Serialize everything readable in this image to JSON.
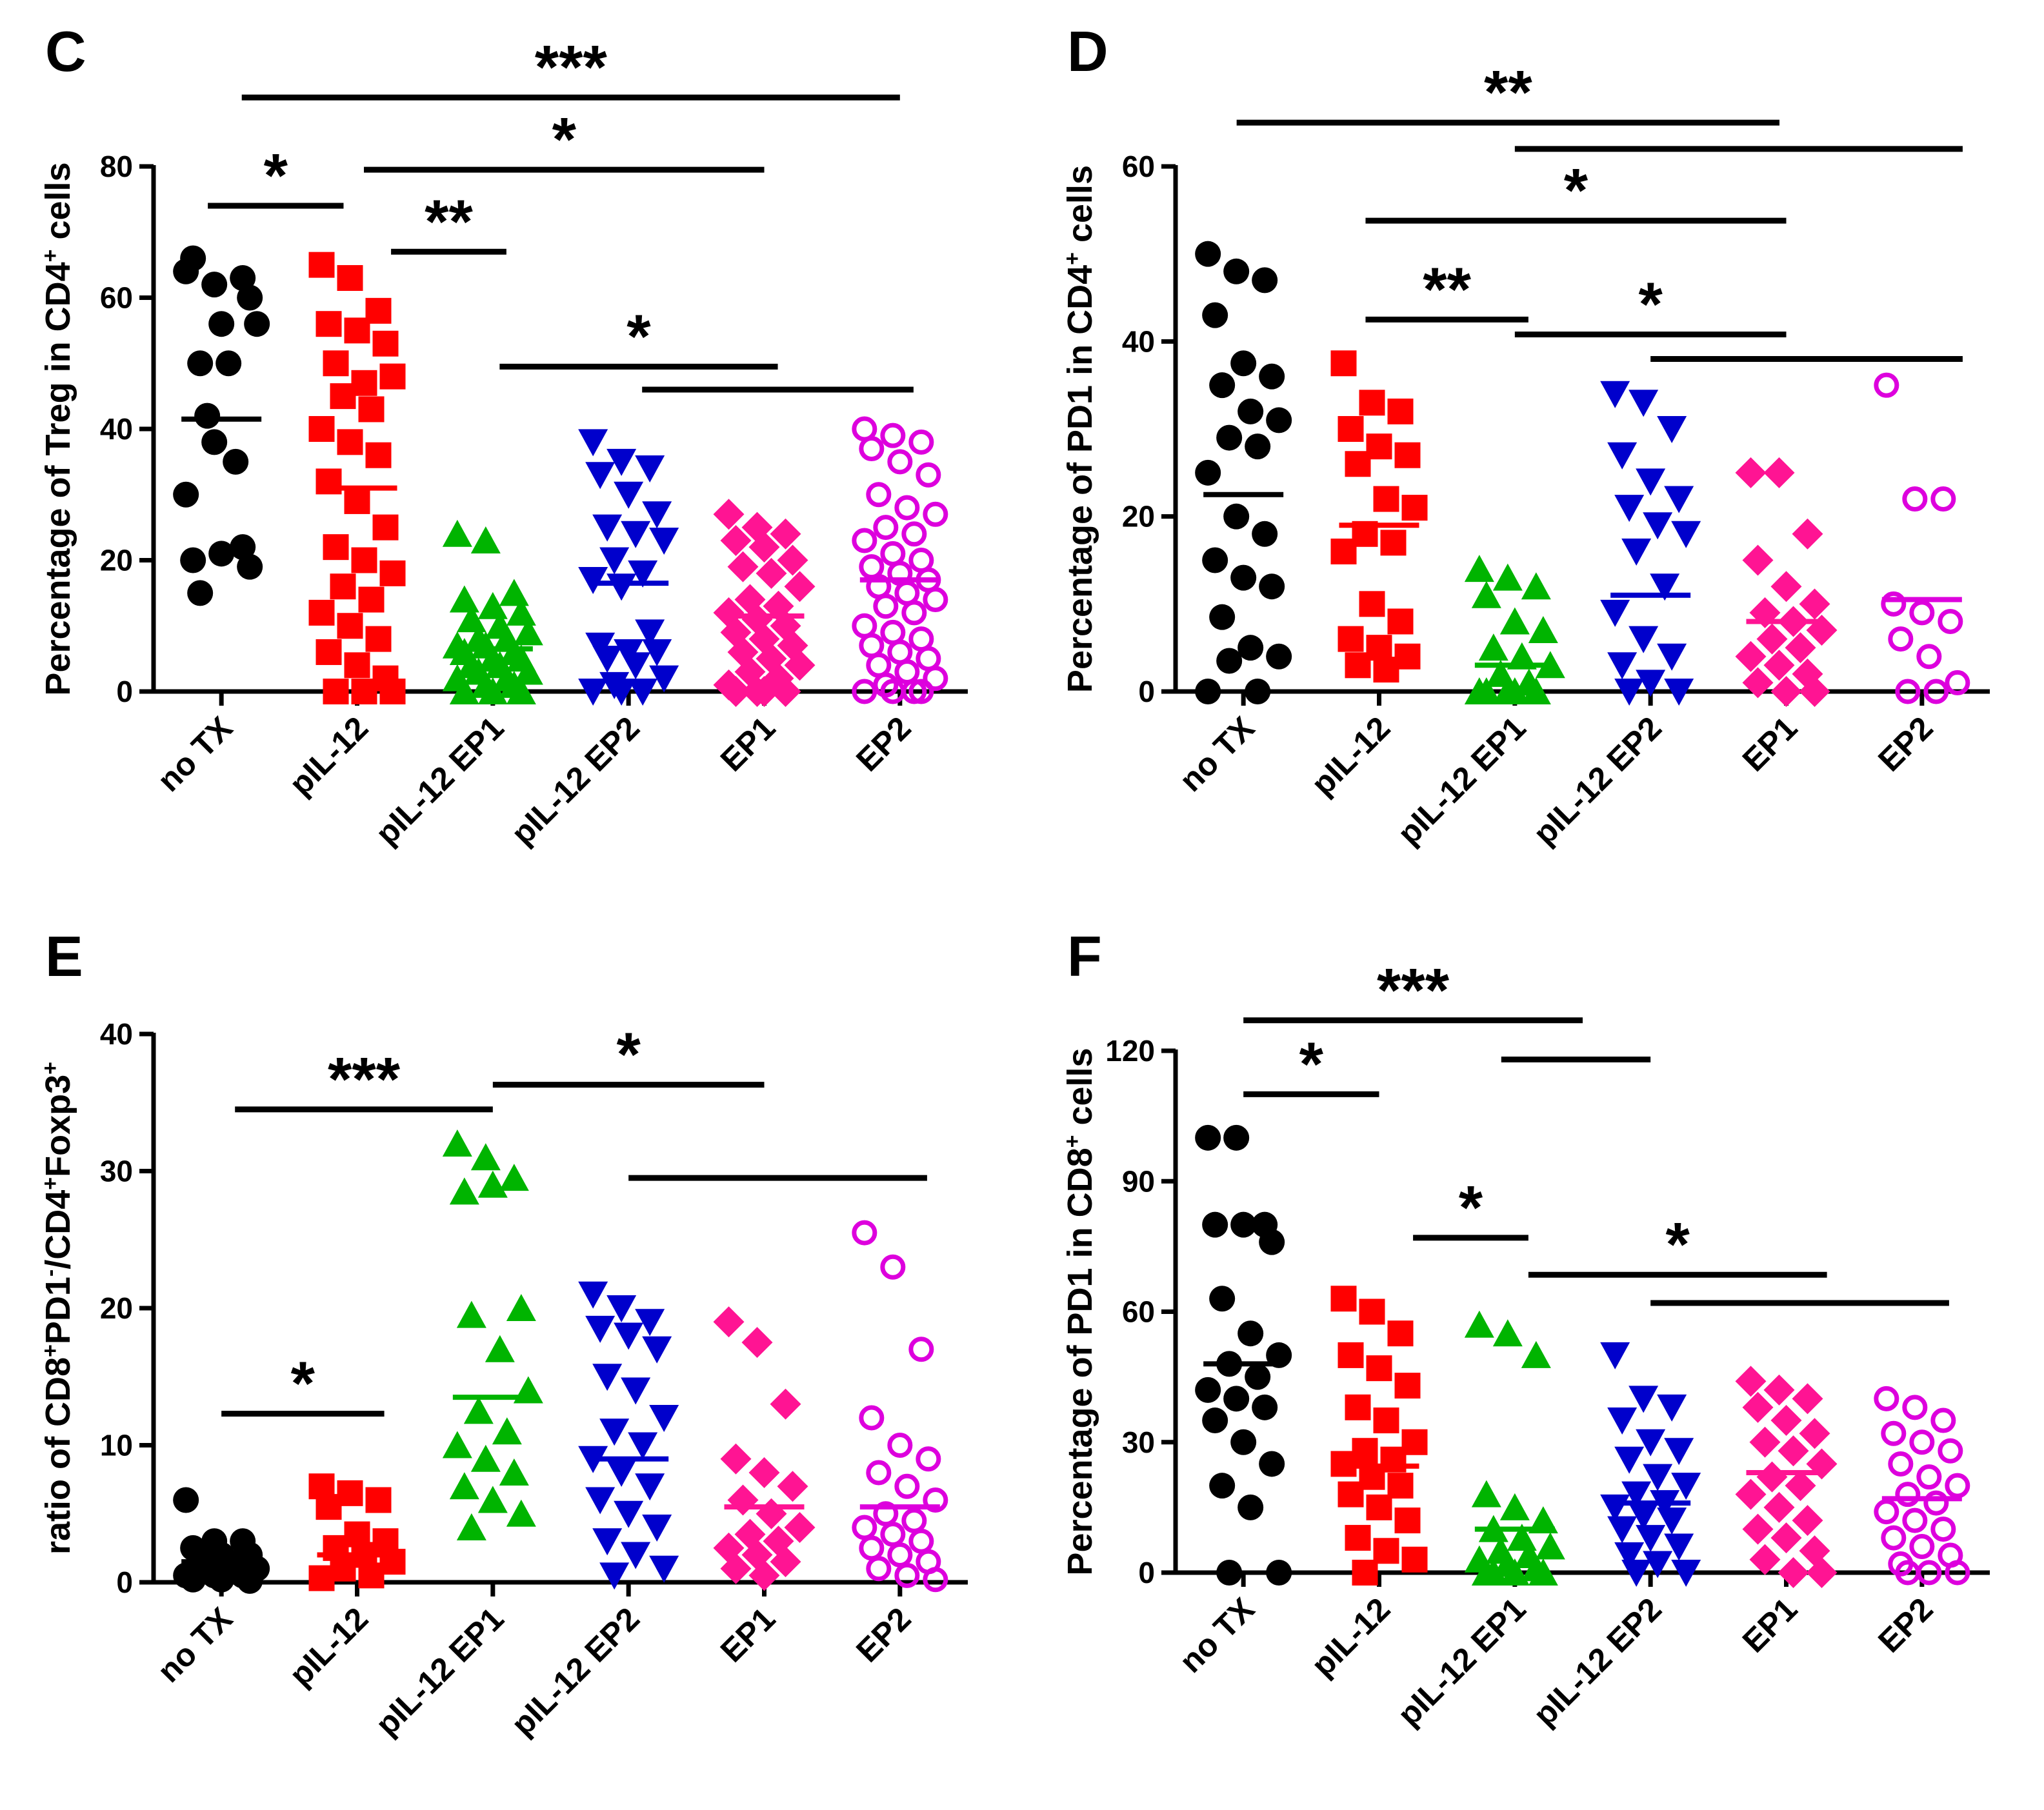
{
  "categories": [
    "no TX",
    "pIL-12",
    "pIL-12 EP1",
    "pIL-12 EP2",
    "EP1",
    "EP2"
  ],
  "group_colors": [
    "#000000",
    "#ff0000",
    "#00b400",
    "#0000cc",
    "#ff1493",
    "#dd00dd"
  ],
  "group_markers": [
    "circle",
    "square",
    "triangle-up",
    "triangle-down",
    "diamond",
    "circle-open"
  ],
  "chart_data": [
    {
      "panel": "C",
      "type": "scatter",
      "ylabel": {
        "pre": "Percentage of Treg in CD4",
        "sup": "+",
        "post": " cells"
      },
      "ylim": [
        0,
        80
      ],
      "yticks": [
        0,
        20,
        40,
        60,
        80
      ],
      "means": [
        41.5,
        31,
        6.5,
        16.5,
        11.5,
        17
      ],
      "points": [
        [
          64,
          62,
          63,
          66,
          56,
          60,
          50,
          50,
          56,
          42,
          35,
          30,
          38,
          22,
          20,
          21,
          19,
          15
        ],
        [
          65,
          63,
          58,
          56,
          55,
          53,
          50,
          47,
          48,
          45,
          43,
          40,
          38,
          36,
          32,
          29,
          25,
          22,
          20,
          18,
          16,
          14,
          12,
          10,
          8,
          6,
          4,
          2,
          0,
          0,
          0
        ],
        [
          24,
          23,
          15,
          14,
          13,
          12,
          11,
          10,
          9,
          8,
          8,
          7,
          7,
          6,
          6,
          5,
          5,
          4,
          4,
          3,
          3,
          2,
          2,
          1,
          1,
          0,
          0,
          0
        ],
        [
          38,
          35,
          34,
          33,
          30,
          27,
          25,
          24,
          23,
          20,
          18,
          17,
          16,
          9,
          7,
          6,
          6,
          5,
          4,
          2,
          1,
          0,
          0,
          0
        ],
        [
          27,
          25,
          24,
          23,
          22,
          20,
          19,
          18,
          16,
          14,
          13,
          12,
          11,
          10,
          9,
          8,
          7,
          6,
          5,
          4,
          3,
          2,
          1,
          0,
          0,
          0,
          0
        ],
        [
          40,
          39,
          38,
          37,
          35,
          33,
          30,
          28,
          27,
          25,
          24,
          23,
          21,
          20,
          19,
          18,
          17,
          16,
          15,
          14,
          13,
          12,
          10,
          9,
          8,
          7,
          6,
          5,
          4,
          3,
          2,
          1,
          0,
          0,
          0,
          0
        ]
      ],
      "brackets": [
        {
          "from": 0.15,
          "to": 5.0,
          "y": 90.5,
          "label": "***"
        },
        {
          "from": -0.1,
          "to": 0.9,
          "y": 74,
          "label": "*"
        },
        {
          "from": 1.05,
          "to": 4.0,
          "y": 79.5,
          "label": "*"
        },
        {
          "from": 1.25,
          "to": 2.1,
          "y": 67,
          "label": "**"
        },
        {
          "from": 2.05,
          "to": 4.1,
          "y": 49.5,
          "label": "*"
        },
        {
          "from": 3.1,
          "to": 5.1,
          "y": 46,
          "label": ""
        }
      ]
    },
    {
      "panel": "D",
      "type": "scatter",
      "ylabel": {
        "pre": "Percentage of PD1 in CD4",
        "sup": "+",
        "post": " cells"
      },
      "ylim": [
        0,
        60
      ],
      "yticks": [
        0,
        20,
        40,
        60
      ],
      "means": [
        22.5,
        19,
        3,
        11,
        8,
        10.5
      ],
      "points": [
        [
          50,
          48,
          47,
          43,
          37.5,
          36,
          35,
          32,
          31,
          29,
          28,
          25,
          20,
          18,
          15,
          13,
          12,
          8.5,
          5,
          4,
          3.5,
          0,
          0
        ],
        [
          37.5,
          33,
          32,
          30,
          28,
          27,
          26,
          22,
          21,
          18,
          17,
          16,
          10,
          8,
          6,
          5,
          4,
          3,
          2.5
        ],
        [
          14,
          13,
          12,
          11,
          8,
          7,
          5,
          4,
          3,
          2,
          1,
          0,
          0,
          0,
          0,
          0
        ],
        [
          34,
          33,
          30,
          27,
          24,
          22,
          21,
          19,
          18,
          16,
          12,
          9,
          6,
          4,
          3,
          1,
          0,
          0
        ],
        [
          25,
          25,
          18,
          15,
          12,
          10,
          9,
          8,
          7,
          6,
          5,
          4,
          3,
          2,
          1,
          0,
          0
        ],
        [
          35,
          22,
          22,
          10,
          9,
          8,
          6,
          4,
          1,
          0,
          0
        ]
      ],
      "brackets": [
        {
          "from": -0.05,
          "to": 3.95,
          "y": 65,
          "label": "**"
        },
        {
          "from": 2.0,
          "to": 5.3,
          "y": 62,
          "label": ""
        },
        {
          "from": 0.9,
          "to": 4.0,
          "y": 53.8,
          "label": "*"
        },
        {
          "from": 0.9,
          "to": 2.1,
          "y": 42.5,
          "label": "**"
        },
        {
          "from": 2.0,
          "to": 4.0,
          "y": 40.8,
          "label": "*"
        },
        {
          "from": 3.0,
          "to": 5.3,
          "y": 38,
          "label": ""
        }
      ]
    },
    {
      "panel": "E",
      "type": "scatter",
      "ylabel": {
        "pre": "ratio of CD8",
        "sup": "+",
        "mid": "PD1",
        "sup2": "-",
        "mid2": "/CD4",
        "sup3": "+",
        "post": "Foxp3",
        "sup4": "+"
      },
      "ylim": [
        0,
        40
      ],
      "yticks": [
        0,
        10,
        20,
        30,
        40
      ],
      "means": [
        1.5,
        2,
        13.5,
        9,
        5.5,
        5.5
      ],
      "points": [
        [
          6,
          3,
          3,
          2.5,
          2,
          2,
          1.5,
          1.5,
          1,
          1,
          1,
          0.5,
          0.5,
          0.5,
          0.2,
          0.2,
          0.1
        ],
        [
          7,
          6.5,
          6,
          5.5,
          3.5,
          3,
          2.5,
          2,
          1.5,
          1,
          0.5,
          0.3
        ],
        [
          32,
          31,
          29.5,
          28.5,
          29,
          20,
          19.5,
          17,
          14,
          12.5,
          11,
          10,
          9,
          8,
          7,
          6,
          5,
          4
        ],
        [
          21,
          20,
          19,
          18.5,
          18,
          17,
          15,
          14,
          12,
          11,
          10,
          9,
          8,
          7,
          6,
          5,
          4,
          3,
          2,
          1,
          0.5
        ],
        [
          19,
          17.5,
          13,
          9,
          8,
          7,
          6,
          5,
          4,
          3.5,
          3,
          2.5,
          2,
          1.5,
          1,
          0.5
        ],
        [
          25.5,
          23,
          17,
          12,
          10,
          9,
          8,
          7,
          6,
          5,
          4.5,
          4,
          3.5,
          3,
          2.5,
          2,
          1.5,
          1,
          0.5,
          0.2
        ]
      ],
      "brackets": [
        {
          "from": 0.1,
          "to": 2.0,
          "y": 34.5,
          "label": "***"
        },
        {
          "from": 2.0,
          "to": 4.0,
          "y": 36.3,
          "label": "*"
        },
        {
          "from": 3.0,
          "to": 5.2,
          "y": 29.5,
          "label": ""
        },
        {
          "from": 0.0,
          "to": 1.2,
          "y": 12.3,
          "label": "*"
        }
      ]
    },
    {
      "panel": "F",
      "type": "scatter",
      "ylabel": {
        "pre": "Percentage of PD1 in CD8",
        "sup": "+",
        "post": " cells"
      },
      "ylim": [
        0,
        120
      ],
      "yticks": [
        0,
        30,
        60,
        90,
        120
      ],
      "means": [
        48,
        24.5,
        10,
        16,
        23,
        17
      ],
      "points": [
        [
          100,
          100,
          80,
          80,
          80,
          76,
          63,
          55,
          50,
          48,
          45,
          42,
          40,
          38,
          35,
          30,
          25,
          20,
          15,
          0,
          0
        ],
        [
          63,
          60,
          55,
          50,
          47,
          43,
          38,
          35,
          30,
          28,
          26,
          25,
          22,
          20,
          18,
          15,
          12,
          8,
          5,
          3,
          0
        ],
        [
          57,
          55,
          50,
          18,
          15,
          12,
          10,
          8,
          6,
          5,
          4,
          3,
          2,
          1,
          0,
          0,
          0,
          0
        ],
        [
          50,
          40,
          38,
          35,
          30,
          28,
          26,
          22,
          20,
          18,
          16,
          15,
          13,
          12,
          10,
          8,
          6,
          4,
          2,
          0,
          0
        ],
        [
          44,
          42,
          40,
          38,
          35,
          32,
          30,
          28,
          25,
          22,
          20,
          18,
          15,
          12,
          10,
          8,
          5,
          3,
          0,
          0
        ],
        [
          40,
          38,
          35,
          32,
          30,
          28,
          25,
          22,
          20,
          18,
          16,
          14,
          12,
          10,
          8,
          6,
          4,
          2,
          0,
          0,
          0
        ]
      ],
      "brackets": [
        {
          "from": 0.0,
          "to": 2.5,
          "y": 127,
          "label": "***"
        },
        {
          "from": 0.0,
          "to": 1.0,
          "y": 110,
          "label": "*"
        },
        {
          "from": 1.9,
          "to": 3.0,
          "y": 118,
          "label": ""
        },
        {
          "from": 1.25,
          "to": 2.1,
          "y": 77,
          "label": "*"
        },
        {
          "from": 2.1,
          "to": 4.3,
          "y": 68.5,
          "label": "*"
        },
        {
          "from": 3.0,
          "to": 5.2,
          "y": 62,
          "label": ""
        }
      ]
    }
  ]
}
